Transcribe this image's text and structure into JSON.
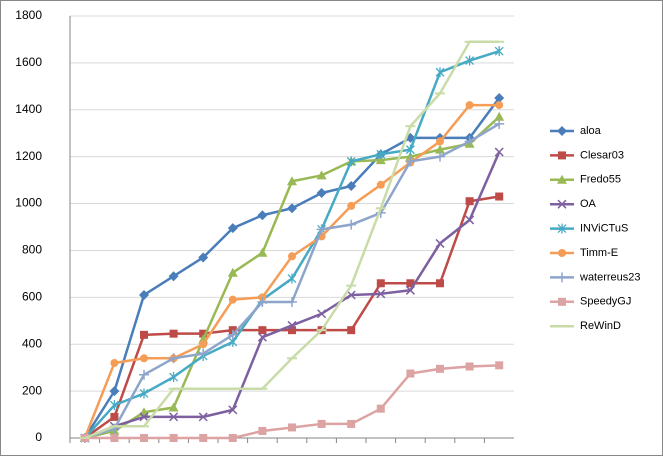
{
  "chart_data": {
    "type": "line",
    "categories": [
      null,
      null,
      null,
      null,
      null,
      null,
      null,
      null,
      null,
      null,
      null,
      null,
      null,
      null,
      null
    ],
    "ylim": [
      0,
      1800
    ],
    "yticks": [
      0,
      200,
      400,
      600,
      800,
      1000,
      1200,
      1400,
      1600,
      1800
    ],
    "grid": true,
    "legend": "right",
    "series": [
      {
        "name": "aloa",
        "color": "#4a7ebb",
        "marker": "diamond",
        "values": [
          0,
          200,
          610,
          690,
          770,
          895,
          950,
          980,
          1045,
          1075,
          1210,
          1280,
          1280,
          1280,
          1450
        ]
      },
      {
        "name": "Clesar03",
        "color": "#be4b48",
        "marker": "square",
        "values": [
          0,
          90,
          440,
          445,
          445,
          460,
          460,
          460,
          460,
          460,
          660,
          660,
          660,
          1010,
          1030
        ]
      },
      {
        "name": "Fredo55",
        "color": "#98b954",
        "marker": "triangle",
        "values": [
          0,
          30,
          110,
          130,
          420,
          705,
          790,
          1095,
          1120,
          1180,
          1185,
          1200,
          1230,
          1255,
          1370
        ]
      },
      {
        "name": "OA",
        "color": "#7d60a0",
        "marker": "x",
        "values": [
          0,
          50,
          90,
          90,
          90,
          120,
          430,
          480,
          530,
          610,
          615,
          630,
          830,
          930,
          1220
        ]
      },
      {
        "name": "INViCTuS",
        "color": "#46aac5",
        "marker": "star",
        "values": [
          0,
          140,
          190,
          260,
          350,
          410,
          590,
          680,
          890,
          1180,
          1210,
          1230,
          1560,
          1610,
          1650
        ]
      },
      {
        "name": "Timm-E",
        "color": "#f59d56",
        "marker": "circle",
        "values": [
          0,
          320,
          340,
          340,
          400,
          590,
          600,
          775,
          860,
          990,
          1080,
          1175,
          1265,
          1420,
          1420
        ]
      },
      {
        "name": "waterreus23",
        "color": "#8ea5cb",
        "marker": "plus",
        "values": [
          0,
          40,
          270,
          340,
          360,
          440,
          580,
          580,
          890,
          910,
          960,
          1180,
          1200,
          1265,
          1340
        ]
      },
      {
        "name": "SpeedyGJ",
        "color": "#dca3a2",
        "marker": "square",
        "values": [
          0,
          0,
          0,
          0,
          0,
          0,
          30,
          45,
          60,
          60,
          125,
          275,
          295,
          305,
          310
        ]
      },
      {
        "name": "ReWinD",
        "color": "#c9dca8",
        "marker": "dash",
        "values": [
          0,
          50,
          50,
          210,
          210,
          210,
          210,
          340,
          460,
          650,
          980,
          1330,
          1470,
          1690,
          1690
        ]
      }
    ]
  }
}
